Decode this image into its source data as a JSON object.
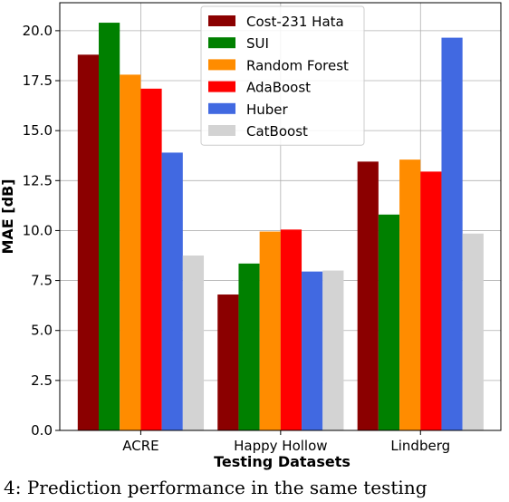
{
  "chart_data": {
    "type": "bar",
    "categories": [
      "ACRE",
      "Happy Hollow",
      "Lindberg"
    ],
    "series": [
      {
        "name": "Cost-231 Hata",
        "color": "#8b0000",
        "values": [
          18.8,
          6.8,
          13.45
        ]
      },
      {
        "name": "SUI",
        "color": "#008000",
        "values": [
          20.4,
          8.35,
          10.8
        ]
      },
      {
        "name": "Random Forest",
        "color": "#ff8c00",
        "values": [
          17.8,
          9.95,
          13.55
        ]
      },
      {
        "name": "AdaBoost",
        "color": "#ff0000",
        "values": [
          17.1,
          10.05,
          12.95
        ]
      },
      {
        "name": "Huber",
        "color": "#4169e1",
        "values": [
          13.9,
          7.95,
          19.65
        ]
      },
      {
        "name": "CatBoost",
        "color": "#d3d3d3",
        "values": [
          8.75,
          8.0,
          9.85
        ]
      }
    ],
    "xlabel": "Testing Datasets",
    "ylabel": "MAE [dB]",
    "ylim": [
      0,
      21.4
    ],
    "yticks": [
      "0.0",
      "2.5",
      "5.0",
      "7.5",
      "10.0",
      "12.5",
      "15.0",
      "17.5",
      "20.0"
    ],
    "grid": true,
    "legend_position": "top-center"
  },
  "caption": "4: Prediction performance in the same testing"
}
